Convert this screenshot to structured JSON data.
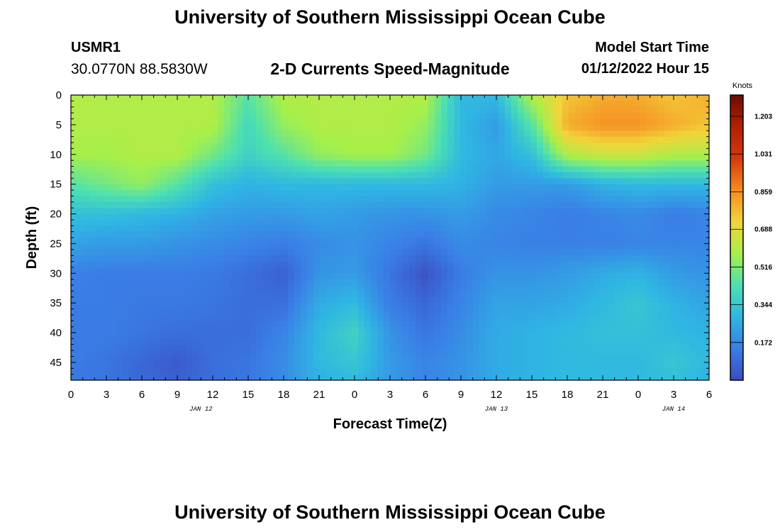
{
  "header": {
    "title": "University of Southern Mississippi Ocean Cube",
    "station_id": "USMR1",
    "station_coords": "30.0770N  88.5830W",
    "subtitle": "2-D Currents Speed-Magnitude",
    "model_start_label": "Model Start Time",
    "model_start_value": "01/12/2022 Hour 15",
    "footer_title": "University of Southern Mississippi Ocean Cube"
  },
  "chart_data": {
    "type": "heatmap",
    "title": "2-D Currents Speed-Magnitude",
    "xlabel": "Forecast Time(Z)",
    "ylabel": "Depth (ft)",
    "x_range_hours": [
      0,
      54
    ],
    "x_tick_labels": [
      "0",
      "3",
      "6",
      "9",
      "12",
      "15",
      "18",
      "21",
      "0",
      "3",
      "6",
      "9",
      "12",
      "15",
      "18",
      "21",
      "0",
      "3",
      "6"
    ],
    "date_labels": [
      {
        "label": "JAN 12",
        "x_hour": 11
      },
      {
        "label": "JAN 13",
        "x_hour": 36
      },
      {
        "label": "JAN 14",
        "x_hour": 51
      }
    ],
    "y_range_ft": [
      0,
      48
    ],
    "y_ticks": [
      0,
      5,
      10,
      15,
      20,
      25,
      30,
      35,
      40,
      45
    ],
    "y_inverted": true,
    "colorbar": {
      "label": "Knots",
      "range": [
        0.0,
        1.3
      ],
      "ticks": [
        1.203,
        1.031,
        0.859,
        0.688,
        0.516,
        0.344,
        0.172
      ],
      "colors": [
        "#3b4cc0",
        "#3a7ee6",
        "#2fb6e3",
        "#4de0b0",
        "#a6f04a",
        "#f2d43a",
        "#f68a22",
        "#d43a0c",
        "#b32000",
        "#6e0b00"
      ]
    },
    "x_hours": [
      0,
      3,
      6,
      9,
      12,
      15,
      18,
      21,
      24,
      27,
      30,
      33,
      36,
      39,
      42,
      45,
      48,
      51,
      54
    ],
    "depths_ft": [
      0,
      5,
      10,
      15,
      20,
      25,
      30,
      35,
      40,
      45,
      48
    ],
    "speed_knots": [
      [
        0.6,
        0.6,
        0.6,
        0.6,
        0.6,
        0.45,
        0.6,
        0.6,
        0.6,
        0.6,
        0.6,
        0.3,
        0.3,
        0.6,
        0.75,
        0.8,
        0.8,
        0.75,
        0.8
      ],
      [
        0.6,
        0.6,
        0.6,
        0.6,
        0.6,
        0.4,
        0.55,
        0.6,
        0.6,
        0.6,
        0.55,
        0.3,
        0.22,
        0.45,
        0.8,
        0.85,
        0.85,
        0.8,
        0.75
      ],
      [
        0.58,
        0.58,
        0.6,
        0.6,
        0.5,
        0.38,
        0.45,
        0.55,
        0.58,
        0.58,
        0.5,
        0.3,
        0.25,
        0.32,
        0.6,
        0.65,
        0.65,
        0.6,
        0.6
      ],
      [
        0.45,
        0.5,
        0.55,
        0.45,
        0.32,
        0.28,
        0.3,
        0.3,
        0.3,
        0.3,
        0.3,
        0.28,
        0.22,
        0.22,
        0.22,
        0.28,
        0.3,
        0.3,
        0.3
      ],
      [
        0.32,
        0.32,
        0.3,
        0.28,
        0.24,
        0.22,
        0.22,
        0.24,
        0.22,
        0.2,
        0.2,
        0.22,
        0.18,
        0.16,
        0.14,
        0.16,
        0.18,
        0.14,
        0.16
      ],
      [
        0.24,
        0.22,
        0.22,
        0.2,
        0.18,
        0.16,
        0.14,
        0.18,
        0.2,
        0.16,
        0.12,
        0.18,
        0.16,
        0.15,
        0.15,
        0.15,
        0.16,
        0.16,
        0.16
      ],
      [
        0.15,
        0.14,
        0.14,
        0.14,
        0.13,
        0.1,
        0.06,
        0.2,
        0.22,
        0.12,
        0.02,
        0.14,
        0.2,
        0.2,
        0.22,
        0.26,
        0.28,
        0.22,
        0.2
      ],
      [
        0.14,
        0.14,
        0.13,
        0.13,
        0.12,
        0.1,
        0.1,
        0.26,
        0.3,
        0.14,
        0.08,
        0.16,
        0.24,
        0.24,
        0.26,
        0.3,
        0.34,
        0.28,
        0.24
      ],
      [
        0.14,
        0.14,
        0.12,
        0.1,
        0.1,
        0.1,
        0.16,
        0.3,
        0.38,
        0.2,
        0.12,
        0.18,
        0.26,
        0.28,
        0.3,
        0.32,
        0.32,
        0.3,
        0.28
      ],
      [
        0.14,
        0.12,
        0.08,
        0.04,
        0.1,
        0.12,
        0.18,
        0.3,
        0.34,
        0.22,
        0.16,
        0.2,
        0.26,
        0.28,
        0.3,
        0.3,
        0.3,
        0.34,
        0.3
      ],
      [
        0.13,
        0.12,
        0.08,
        0.06,
        0.1,
        0.12,
        0.18,
        0.28,
        0.3,
        0.22,
        0.16,
        0.2,
        0.26,
        0.28,
        0.3,
        0.3,
        0.3,
        0.32,
        0.28
      ]
    ]
  }
}
